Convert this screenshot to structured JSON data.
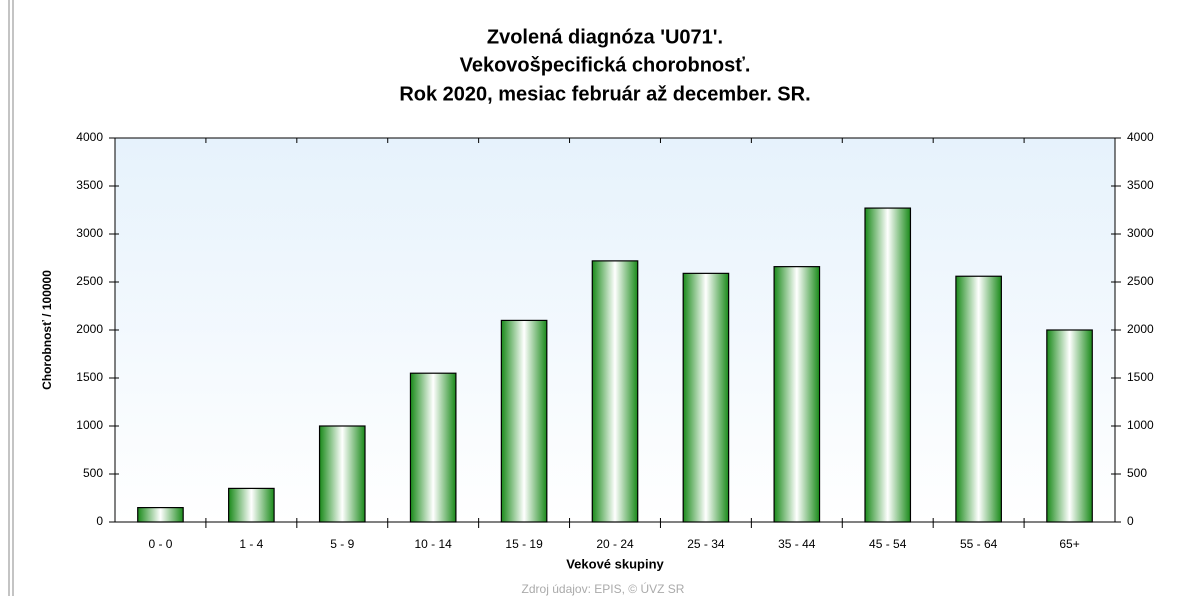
{
  "chart_data": {
    "type": "bar",
    "title": [
      "Zvolená diagnóza 'U071'.",
      "Vekovošpecifická chorobnosť.",
      "Rok 2020, mesiac február až december. SR."
    ],
    "x_label": "Vekové skupiny",
    "y_label": "Chorobnosť / 100000",
    "source": "Zdroj údajov: EPIS, © ÚVZ SR",
    "categories": [
      "0 - 0",
      "1 - 4",
      "5 - 9",
      "10 - 14",
      "15 - 19",
      "20 - 24",
      "25 - 34",
      "35 - 44",
      "45 - 54",
      "55 - 64",
      "65+"
    ],
    "values": [
      150,
      350,
      1000,
      1550,
      2100,
      2720,
      2590,
      2660,
      3270,
      2560,
      2000
    ],
    "color": "#1a8a1a",
    "ylim": [
      0,
      4000
    ],
    "yticks": [
      0,
      500,
      1000,
      1500,
      2000,
      2500,
      3000,
      3500,
      4000
    ],
    "y2lim": [
      0,
      4000
    ],
    "y2ticks": [
      0,
      500,
      1000,
      1500,
      2000,
      2500,
      3000,
      3500,
      4000
    ],
    "grid": false
  }
}
